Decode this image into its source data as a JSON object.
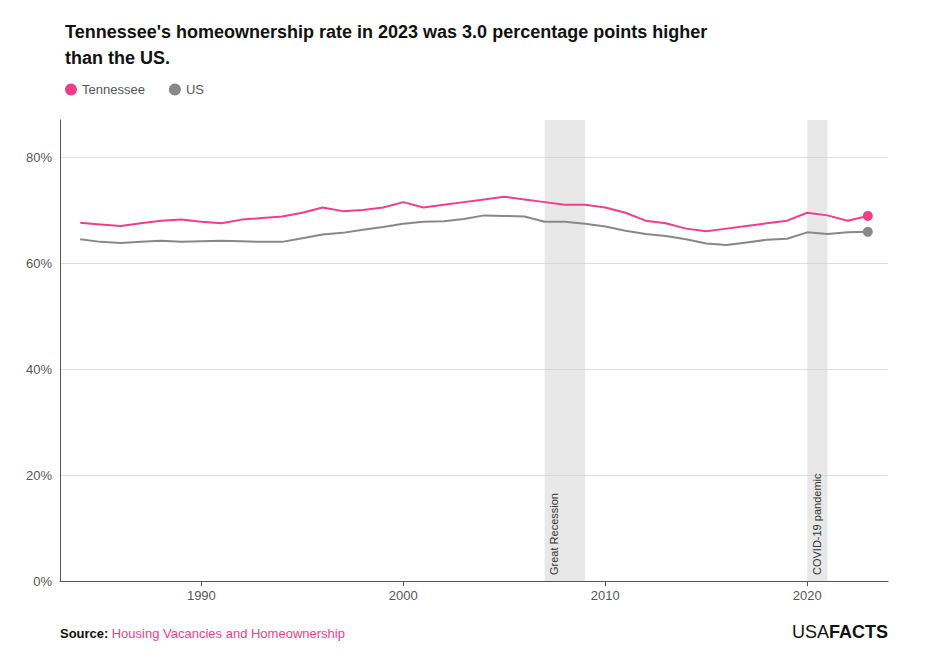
{
  "chart_data": {
    "type": "line",
    "title": "Tennessee's homeownership rate in 2023 was 3.0 percentage points higher\nthan the US.",
    "x": [
      1984,
      1985,
      1986,
      1987,
      1988,
      1989,
      1990,
      1991,
      1992,
      1993,
      1994,
      1995,
      1996,
      1997,
      1998,
      1999,
      2000,
      2001,
      2002,
      2003,
      2004,
      2005,
      2006,
      2007,
      2008,
      2009,
      2010,
      2011,
      2012,
      2013,
      2014,
      2015,
      2016,
      2017,
      2018,
      2019,
      2020,
      2021,
      2022,
      2023
    ],
    "series": [
      {
        "name": "Tennessee",
        "color": "#F03E8A",
        "values": [
          67.6,
          67.3,
          67.0,
          67.5,
          68.0,
          68.2,
          67.8,
          67.5,
          68.2,
          68.5,
          68.8,
          69.5,
          70.5,
          69.8,
          70.0,
          70.5,
          71.5,
          70.5,
          71.0,
          71.5,
          72.0,
          72.5,
          72.0,
          71.5,
          71.0,
          71.0,
          70.5,
          69.5,
          68.0,
          67.5,
          66.5,
          66.0,
          66.5,
          67.0,
          67.5,
          68.0,
          69.5,
          69.0,
          68.0,
          68.9
        ]
      },
      {
        "name": "US",
        "color": "#888888",
        "values": [
          64.5,
          64.0,
          63.8,
          64.0,
          64.2,
          64.0,
          64.1,
          64.2,
          64.1,
          64.0,
          64.0,
          64.7,
          65.4,
          65.7,
          66.3,
          66.8,
          67.4,
          67.8,
          67.9,
          68.3,
          69.0,
          68.9,
          68.8,
          67.8,
          67.8,
          67.4,
          66.9,
          66.1,
          65.5,
          65.1,
          64.5,
          63.7,
          63.4,
          63.9,
          64.4,
          64.6,
          65.8,
          65.5,
          65.8,
          65.9
        ]
      }
    ],
    "xlim": [
      1983,
      2024
    ],
    "xticks": [
      1990,
      2000,
      2010,
      2020
    ],
    "ylim": [
      0,
      87
    ],
    "yticks": [
      {
        "value": 0,
        "label": "0%"
      },
      {
        "value": 20,
        "label": "20%"
      },
      {
        "value": 40,
        "label": "40%"
      },
      {
        "value": 60,
        "label": "60%"
      },
      {
        "value": 80,
        "label": "80%"
      }
    ],
    "grid": true,
    "legend": "top-left",
    "annotations": [
      {
        "text": "Great Recession",
        "x_start": 2007,
        "x_end": 2009
      },
      {
        "text": "COVID-19 pandemic",
        "x_start": 2020,
        "x_end": 2021
      }
    ],
    "source": {
      "label": "Source:",
      "text": "Housing Vacancies and Homeownership"
    },
    "watermark": [
      "USA",
      "FACTS"
    ]
  }
}
